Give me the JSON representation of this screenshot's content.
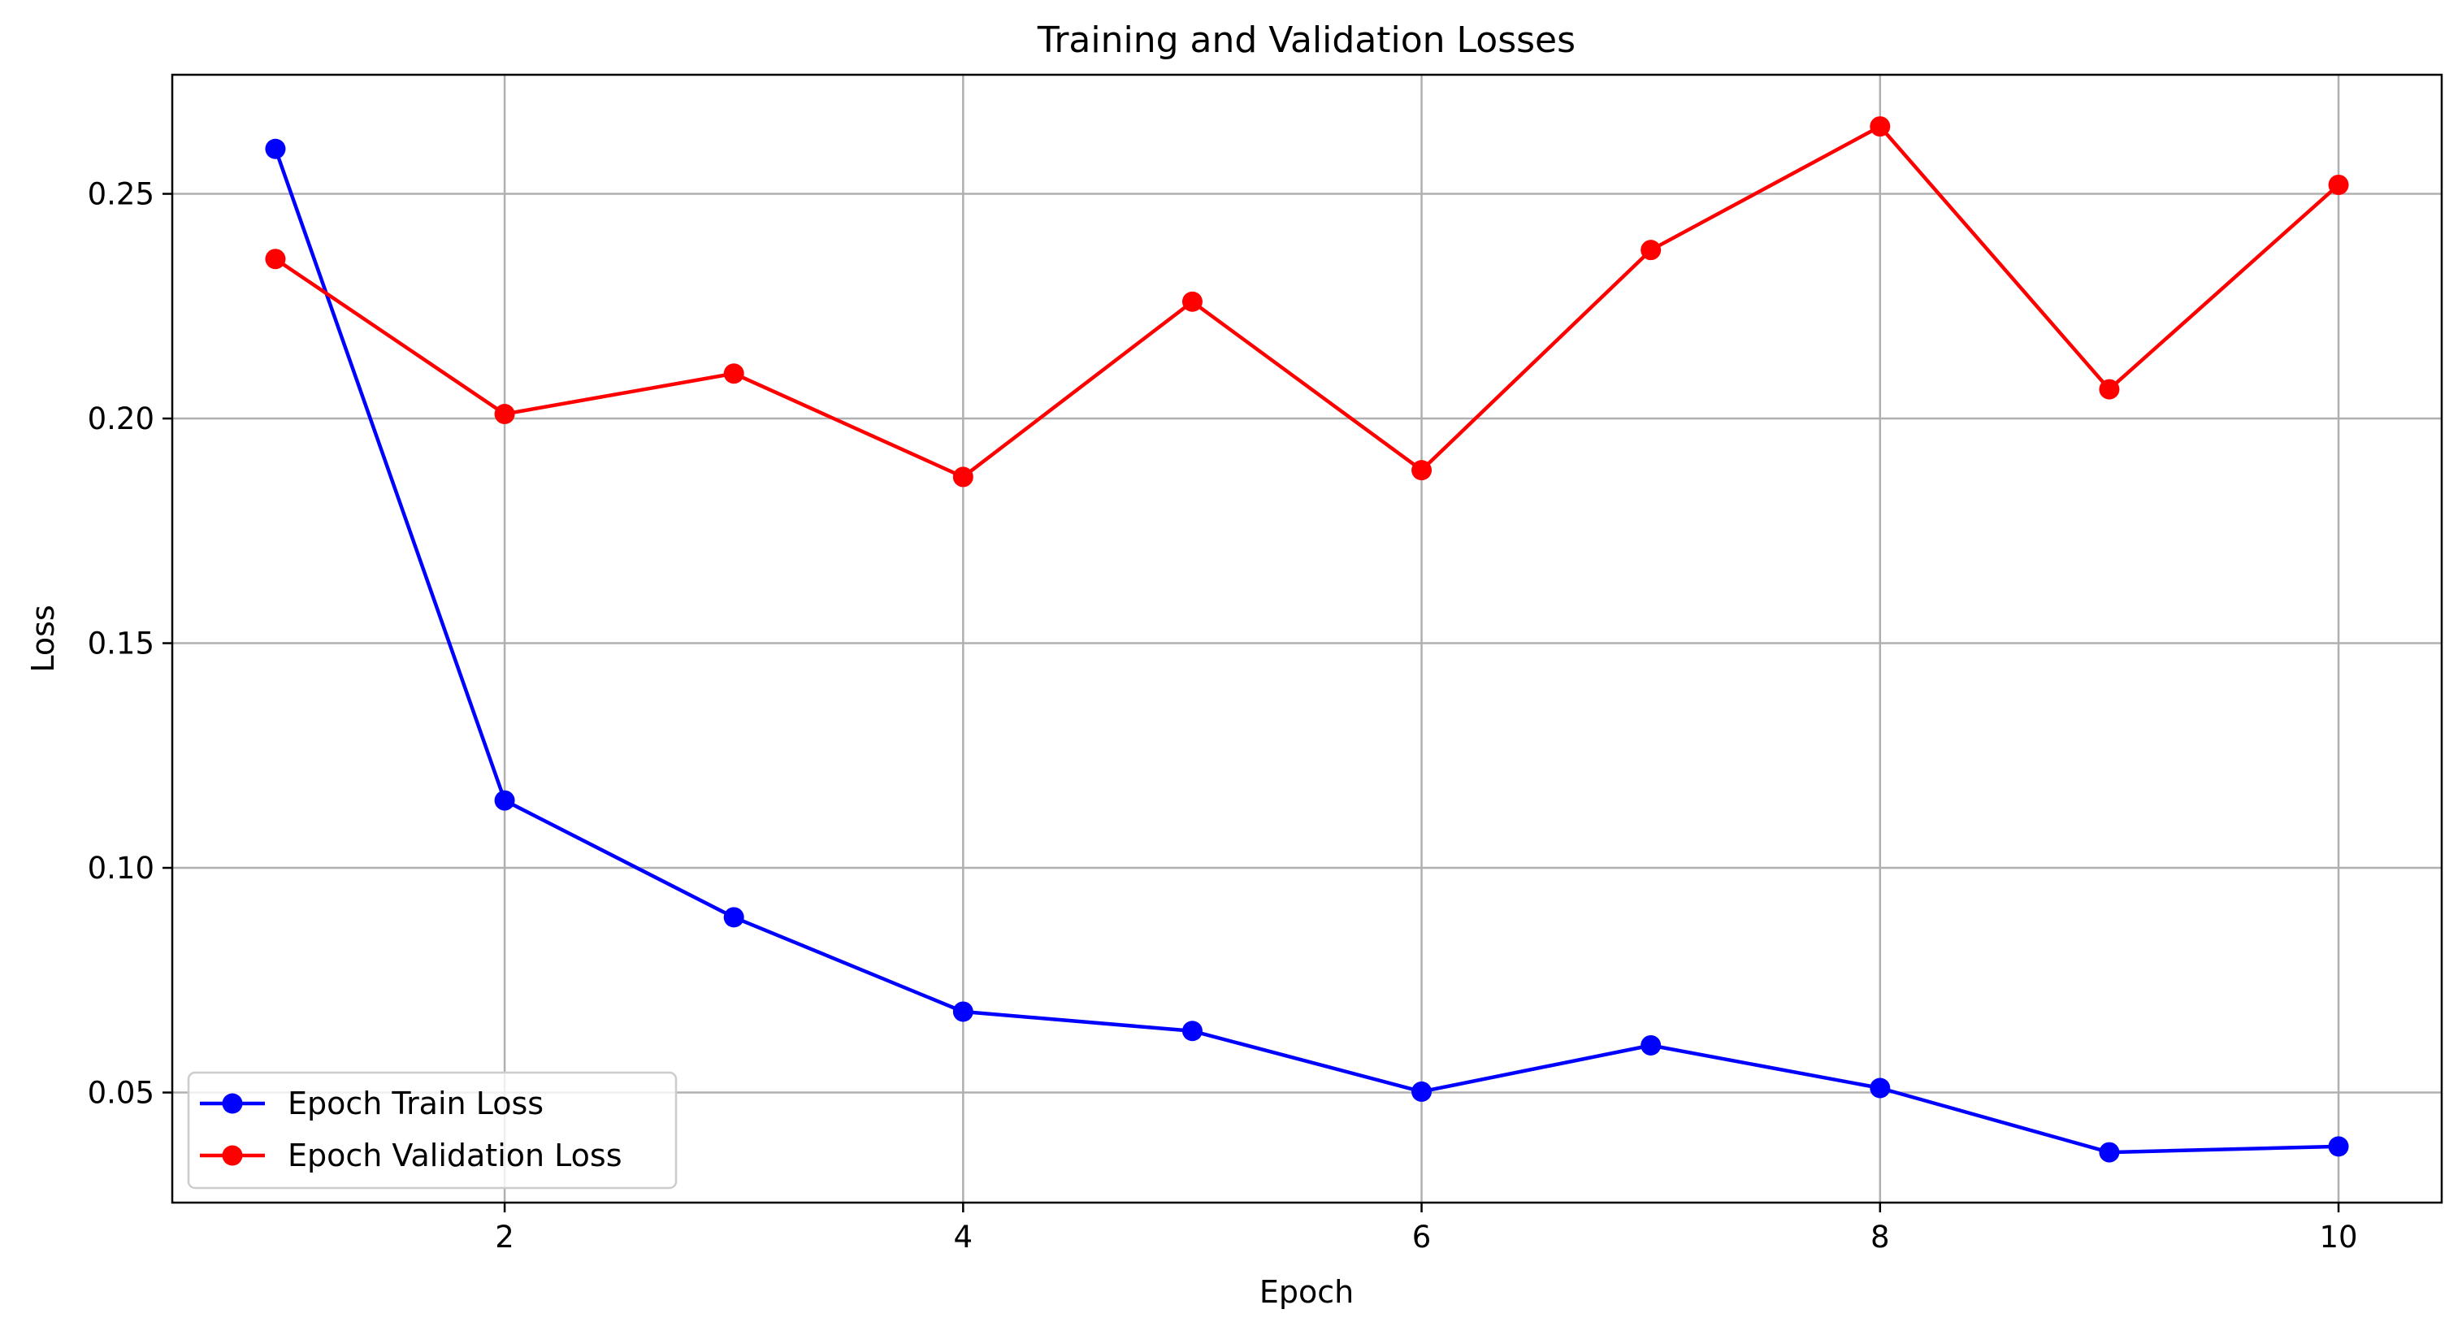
{
  "chart_data": {
    "type": "line",
    "title": "Training and Validation Losses",
    "xlabel": "Epoch",
    "ylabel": "Loss",
    "xlim": [
      0.55,
      10.45
    ],
    "ylim": [
      0.0255,
      0.2765
    ],
    "xticks": [
      2,
      4,
      6,
      8,
      10
    ],
    "yticks": [
      0.05,
      0.1,
      0.15,
      0.2,
      0.25
    ],
    "ytick_labels": [
      "0.05",
      "0.10",
      "0.15",
      "0.20",
      "0.25"
    ],
    "grid": true,
    "legend_position": "lower-left",
    "x": [
      1,
      2,
      3,
      4,
      5,
      6,
      7,
      8,
      9,
      10
    ],
    "series": [
      {
        "name": "Epoch Train Loss",
        "color": "#0000ff",
        "values": [
          0.26,
          0.115,
          0.089,
          0.068,
          0.0637,
          0.0502,
          0.0605,
          0.051,
          0.0367,
          0.038
        ]
      },
      {
        "name": "Epoch Validation Loss",
        "color": "#ff0000",
        "values": [
          0.2355,
          0.201,
          0.21,
          0.187,
          0.226,
          0.1885,
          0.2375,
          0.265,
          0.2065,
          0.252
        ]
      }
    ]
  }
}
